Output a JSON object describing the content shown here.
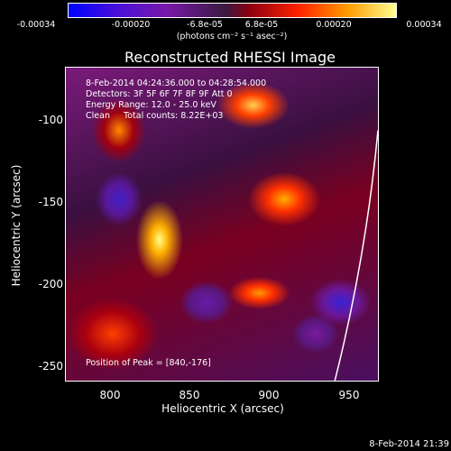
{
  "colorbar": {
    "ticks": [
      "-0.00034",
      "-0.00020",
      "-6.8e-05",
      "6.8e-05",
      "0.00020",
      "0.00034"
    ],
    "units": "(photons cm⁻² s⁻¹ asec⁻²)"
  },
  "plot": {
    "title": "Reconstructed RHESSI Image",
    "overlay": {
      "time_range": "8-Feb-2014 04:24:36.000 to 04:28:54.000",
      "detectors": "Detectors: 3F 5F 6F 7F 8F 9F Att 0",
      "energy": "Energy Range: 12.0 - 25.0 keV",
      "method": "Clean     Total counts: 8.22E+03",
      "peak": "Position of Peak = [840,-176]"
    },
    "xlabel": "Heliocentric X (arcsec)",
    "ylabel": "Heliocentric Y (arcsec)",
    "xticks": [
      "800",
      "850",
      "900",
      "950"
    ],
    "yticks": [
      "-100",
      "-150",
      "-200",
      "-250"
    ]
  },
  "footer": {
    "timestamp": "8-Feb-2014 21:39"
  }
}
